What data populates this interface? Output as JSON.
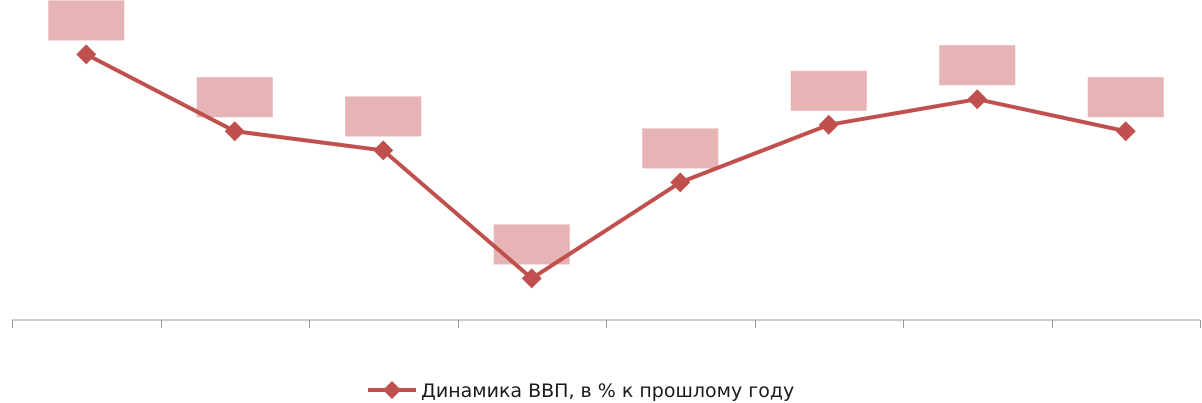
{
  "chart_data": {
    "type": "line",
    "title": "",
    "xlabel": "",
    "ylabel": "",
    "x": [
      1,
      2,
      3,
      4,
      5,
      6,
      7,
      8
    ],
    "ylim": [
      0,
      10
    ],
    "grid": false,
    "legend": "bottom",
    "series": [
      {
        "name": "Динамика ВВП, в % к прошлому году",
        "values": [
          8.3,
          5.9,
          5.3,
          1.3,
          4.3,
          6.1,
          6.9,
          5.9
        ],
        "color": "#c0504d"
      }
    ],
    "data_label_fill": "#e6b4b4",
    "axis_color": "#9a9a9a"
  }
}
